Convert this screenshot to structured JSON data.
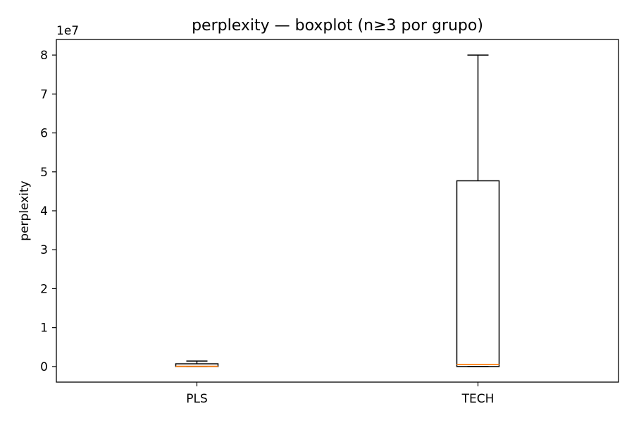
{
  "chart_data": {
    "type": "boxplot",
    "title": "perplexity — boxplot (n≥3 por grupo)",
    "xlabel": "",
    "ylabel": "perplexity",
    "y_offset_label": "1e7",
    "y_scale": 10000000,
    "ylim": [
      -4000000,
      84000000
    ],
    "yticks": [
      0,
      10000000,
      20000000,
      30000000,
      40000000,
      50000000,
      60000000,
      70000000,
      80000000
    ],
    "ytick_labels": [
      "0",
      "1",
      "2",
      "3",
      "4",
      "5",
      "6",
      "7",
      "8"
    ],
    "categories": [
      "PLS",
      "TECH"
    ],
    "boxes": [
      {
        "category": "PLS",
        "whisker_low": 0,
        "q1": 0,
        "median": 50000,
        "q3": 700000,
        "whisker_high": 1400000
      },
      {
        "category": "TECH",
        "whisker_low": 0,
        "q1": 0,
        "median": 500000,
        "q3": 47700000,
        "whisker_high": 80000000
      }
    ],
    "grid": false,
    "colors": {
      "box": "#000000",
      "median": "#ff7f0e",
      "frame": "#000000"
    }
  }
}
